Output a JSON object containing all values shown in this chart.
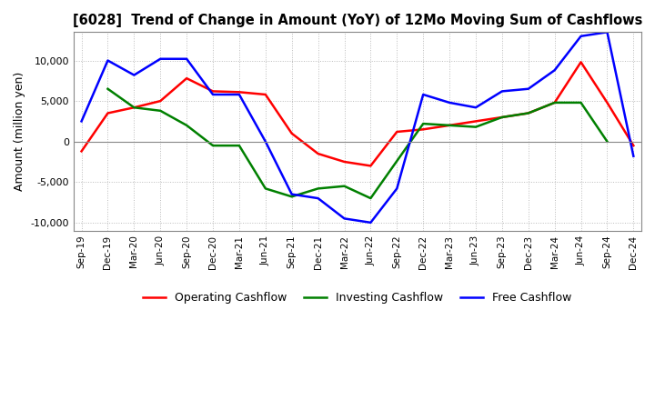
{
  "title": "[6028]  Trend of Change in Amount (YoY) of 12Mo Moving Sum of Cashflows",
  "ylabel": "Amount (million yen)",
  "ylim": [
    -11000,
    13500
  ],
  "yticks": [
    -10000,
    -5000,
    0,
    5000,
    10000
  ],
  "background_color": "#ffffff",
  "grid_color": "#aaaaaa",
  "x_labels": [
    "Sep-19",
    "Dec-19",
    "Mar-20",
    "Jun-20",
    "Sep-20",
    "Dec-20",
    "Mar-21",
    "Jun-21",
    "Sep-21",
    "Dec-21",
    "Mar-22",
    "Jun-22",
    "Sep-22",
    "Dec-22",
    "Mar-23",
    "Jun-23",
    "Sep-23",
    "Dec-23",
    "Mar-24",
    "Jun-24",
    "Sep-24",
    "Dec-24"
  ],
  "operating": [
    -1200,
    3500,
    4200,
    5000,
    7800,
    6200,
    6100,
    5800,
    1000,
    -1500,
    -2500,
    -3000,
    1200,
    1500,
    2000,
    2500,
    3000,
    3500,
    4800,
    9800,
    4800,
    -500
  ],
  "investing": [
    null,
    6500,
    4200,
    3800,
    2000,
    -500,
    -500,
    -5800,
    -6800,
    -5800,
    -5500,
    -7000,
    null,
    2200,
    2000,
    1800,
    3000,
    3500,
    4800,
    4800,
    0,
    null
  ],
  "free": [
    2500,
    10000,
    8200,
    10200,
    10200,
    5800,
    5800,
    0,
    -6500,
    -7000,
    -9500,
    -10000,
    -5800,
    5800,
    4800,
    4200,
    6200,
    6500,
    8800,
    13000,
    13500,
    -1800
  ],
  "op_color": "#ff0000",
  "inv_color": "#008000",
  "free_color": "#0000ff",
  "legend_labels": [
    "Operating Cashflow",
    "Investing Cashflow",
    "Free Cashflow"
  ]
}
